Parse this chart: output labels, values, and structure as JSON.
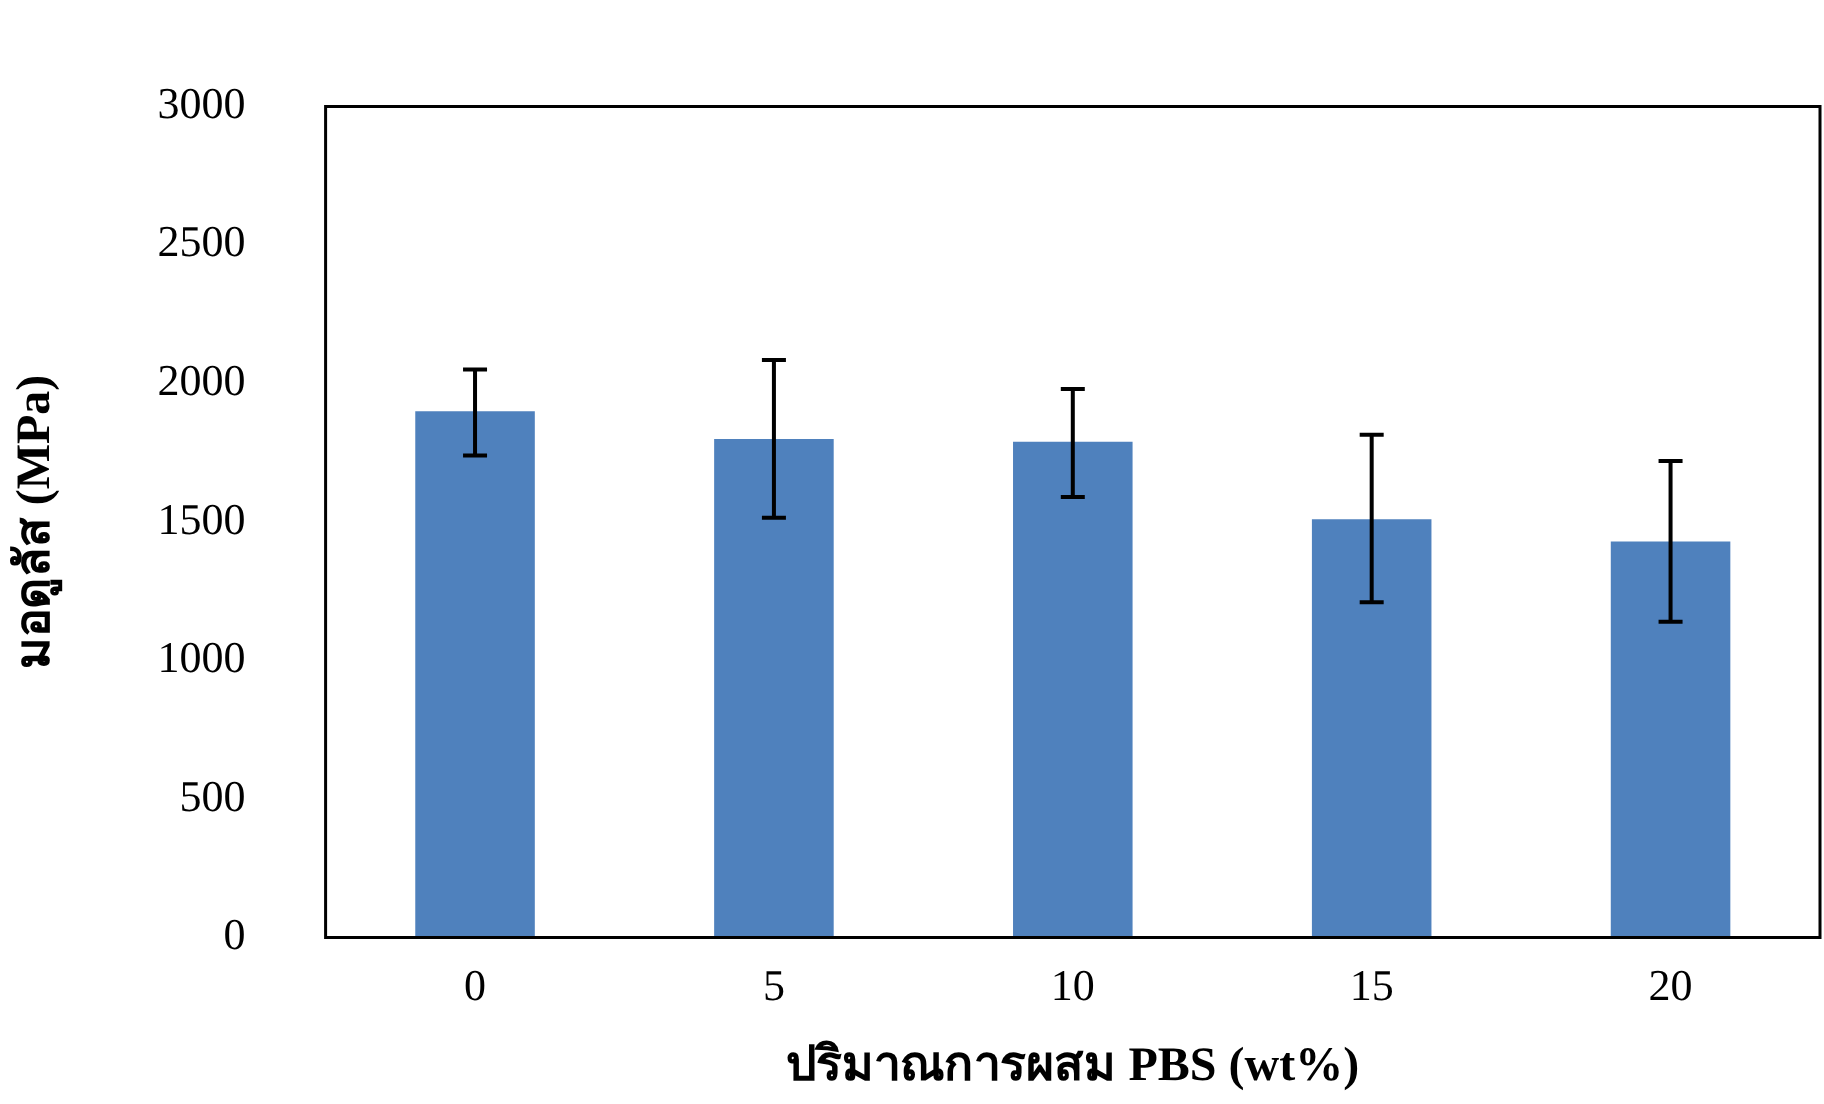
{
  "chart_data": {
    "type": "bar",
    "xlabel": "ปริมาณการผสม PBS (wt%)",
    "ylabel": "มอดูลัส (MPa)",
    "categories": [
      "0",
      "5",
      "10",
      "15",
      "20"
    ],
    "values": [
      1900,
      1800,
      1790,
      1510,
      1430
    ],
    "errors": [
      [
        1740,
        2050
      ],
      [
        1515,
        2085
      ],
      [
        1590,
        1980
      ],
      [
        1210,
        1815
      ],
      [
        1140,
        1720
      ]
    ],
    "color": "#4f81bd",
    "ylim": [
      0,
      3000
    ],
    "yticks": [
      0,
      500,
      1000,
      1500,
      2000,
      2500,
      3000
    ],
    "grid": false,
    "legend": false
  }
}
